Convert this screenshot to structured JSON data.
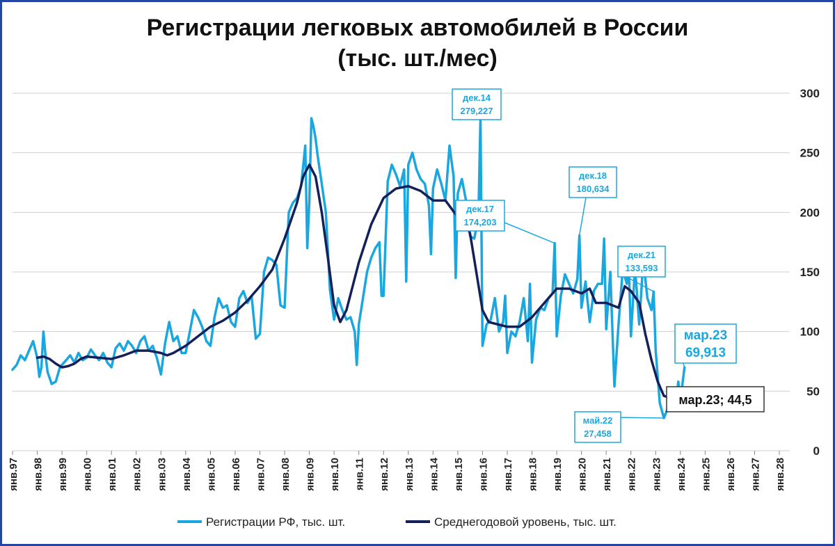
{
  "chart_data": {
    "type": "line",
    "title_line1": "Регистрации легковых автомобилей в России",
    "title_line2": "(тыс. шт./мес)",
    "ylim": [
      0,
      300
    ],
    "yticks": [
      0,
      50,
      100,
      150,
      200,
      250,
      300
    ],
    "y_axis_position": "right",
    "grid": true,
    "legend_position": "bottom",
    "x_start_year": 1997,
    "xticks": [
      "янв.97",
      "янв.98",
      "янв.99",
      "янв.00",
      "янв.01",
      "янв.02",
      "янв.03",
      "янв.04",
      "янв.05",
      "янв.06",
      "янв.07",
      "янв.08",
      "янв.09",
      "янв.10",
      "янв.11",
      "янв.12",
      "янв.13",
      "янв.14",
      "янв.15",
      "янв.16",
      "янв.17",
      "янв.18",
      "янв.19",
      "янв.20",
      "янв.21",
      "янв.22",
      "янв.23",
      "янв.24",
      "янв.25",
      "янв.26",
      "янв.27",
      "янв.28"
    ],
    "series": [
      {
        "name": "Регистрации РФ, тыс. шт.",
        "color": "#1aa7e0",
        "points": [
          [
            "янв.97",
            68
          ],
          [
            "мар.97",
            72
          ],
          [
            "май.97",
            80
          ],
          [
            "июл.97",
            76
          ],
          [
            "сен.97",
            84
          ],
          [
            "ноя.97",
            92
          ],
          [
            "янв.98",
            78
          ],
          [
            "фев.98",
            62
          ],
          [
            "мар.98",
            70
          ],
          [
            "апр.98",
            100
          ],
          [
            "май.98",
            80
          ],
          [
            "июн.98",
            66
          ],
          [
            "авг.98",
            56
          ],
          [
            "окт.98",
            58
          ],
          [
            "дек.98",
            70
          ],
          [
            "янв.99",
            72
          ],
          [
            "мар.99",
            76
          ],
          [
            "май.99",
            80
          ],
          [
            "июл.99",
            74
          ],
          [
            "сен.99",
            82
          ],
          [
            "ноя.99",
            76
          ],
          [
            "янв.00",
            78
          ],
          [
            "мар.00",
            85
          ],
          [
            "май.00",
            80
          ],
          [
            "июл.00",
            76
          ],
          [
            "сен.00",
            82
          ],
          [
            "ноя.00",
            74
          ],
          [
            "янв.01",
            70
          ],
          [
            "мар.01",
            86
          ],
          [
            "май.01",
            90
          ],
          [
            "июл.01",
            84
          ],
          [
            "сен.01",
            92
          ],
          [
            "ноя.01",
            88
          ],
          [
            "янв.02",
            82
          ],
          [
            "мар.02",
            92
          ],
          [
            "май.02",
            96
          ],
          [
            "июл.02",
            84
          ],
          [
            "сен.02",
            88
          ],
          [
            "ноя.02",
            78
          ],
          [
            "янв.03",
            64
          ],
          [
            "мар.03",
            90
          ],
          [
            "май.03",
            108
          ],
          [
            "июл.03",
            92
          ],
          [
            "сен.03",
            96
          ],
          [
            "ноя.03",
            82
          ],
          [
            "янв.04",
            82
          ],
          [
            "мар.04",
            100
          ],
          [
            "май.04",
            118
          ],
          [
            "июл.04",
            112
          ],
          [
            "сен.04",
            104
          ],
          [
            "ноя.04",
            92
          ],
          [
            "янв.05",
            88
          ],
          [
            "мар.05",
            112
          ],
          [
            "май.05",
            128
          ],
          [
            "июл.05",
            120
          ],
          [
            "сен.05",
            122
          ],
          [
            "ноя.05",
            108
          ],
          [
            "янв.06",
            104
          ],
          [
            "мар.06",
            128
          ],
          [
            "май.06",
            134
          ],
          [
            "июл.06",
            124
          ],
          [
            "сен.06",
            130
          ],
          [
            "ноя.06",
            94
          ],
          [
            "янв.07",
            98
          ],
          [
            "мар.07",
            150
          ],
          [
            "май.07",
            162
          ],
          [
            "июл.07",
            160
          ],
          [
            "сен.07",
            156
          ],
          [
            "ноя.07",
            122
          ],
          [
            "янв.08",
            120
          ],
          [
            "мар.08",
            200
          ],
          [
            "май.08",
            208
          ],
          [
            "июл.08",
            212
          ],
          [
            "сен.08",
            222
          ],
          [
            "ноя.08",
            256
          ],
          [
            "дек.08",
            170
          ],
          [
            "янв.09",
            210
          ],
          [
            "фев.09",
            279
          ],
          [
            "мар.09",
            272
          ],
          [
            "апр.09",
            262
          ],
          [
            "май.09",
            248
          ],
          [
            "июл.09",
            224
          ],
          [
            "сен.09",
            200
          ],
          [
            "ноя.09",
            135
          ],
          [
            "янв.10",
            110
          ],
          [
            "мар.10",
            128
          ],
          [
            "май.10",
            118
          ],
          [
            "июл.10",
            110
          ],
          [
            "сен.10",
            112
          ],
          [
            "ноя.10",
            100
          ],
          [
            "дек.10",
            72
          ],
          [
            "янв.11",
            106
          ],
          [
            "мар.11",
            128
          ],
          [
            "май.11",
            150
          ],
          [
            "июл.11",
            162
          ],
          [
            "сен.11",
            170
          ],
          [
            "ноя.11",
            175
          ],
          [
            "дек.11",
            130
          ],
          [
            "янв.12",
            130
          ],
          [
            "мар.12",
            226
          ],
          [
            "май.12",
            240
          ],
          [
            "июл.12",
            232
          ],
          [
            "сен.12",
            222
          ],
          [
            "ноя.12",
            236
          ],
          [
            "дек.12",
            142
          ],
          [
            "янв.13",
            240
          ],
          [
            "мар.13",
            250
          ],
          [
            "май.13",
            236
          ],
          [
            "июл.13",
            228
          ],
          [
            "сен.13",
            224
          ],
          [
            "ноя.13",
            206
          ],
          [
            "дек.13",
            165
          ],
          [
            "янв.14",
            220
          ],
          [
            "мар.14",
            236
          ],
          [
            "май.14",
            224
          ],
          [
            "июл.14",
            210
          ],
          [
            "сен.14",
            256
          ],
          [
            "ноя.14",
            230
          ],
          [
            "дек.14",
            145
          ],
          [
            "янв.15",
            216
          ],
          [
            "мар.15",
            228
          ],
          [
            "май.15",
            210
          ],
          [
            "июл.15",
            180
          ],
          [
            "сен.15",
            178
          ],
          [
            "ноя.15",
            196
          ],
          [
            "дек.15",
            279.227
          ],
          [
            "янв.16",
            88
          ],
          [
            "мар.16",
            106
          ],
          [
            "май.16",
            110
          ],
          [
            "июл.16",
            128
          ],
          [
            "сен.16",
            100
          ],
          [
            "ноя.16",
            108
          ],
          [
            "дек.16",
            130
          ],
          [
            "янв.17",
            82
          ],
          [
            "мар.17",
            100
          ],
          [
            "май.17",
            96
          ],
          [
            "июл.17",
            108
          ],
          [
            "сен.17",
            128
          ],
          [
            "ноя.17",
            92
          ],
          [
            "дек.17",
            140
          ],
          [
            "янв.18",
            74
          ],
          [
            "мар.18",
            110
          ],
          [
            "май.18",
            120
          ],
          [
            "июл.18",
            118
          ],
          [
            "сен.18",
            128
          ],
          [
            "ноя.18",
            132
          ],
          [
            "дек.18",
            174.203
          ],
          [
            "янв.19",
            96
          ],
          [
            "мар.19",
            130
          ],
          [
            "май.19",
            148
          ],
          [
            "июл.19",
            140
          ],
          [
            "сен.19",
            132
          ],
          [
            "ноя.19",
            144
          ],
          [
            "дек.19",
            180.634
          ],
          [
            "янв.20",
            120
          ],
          [
            "мар.20",
            142
          ],
          [
            "май.20",
            108
          ],
          [
            "июл.20",
            134
          ],
          [
            "сен.20",
            140
          ],
          [
            "ноя.20",
            140
          ],
          [
            "дек.20",
            178
          ],
          [
            "янв.21",
            102
          ],
          [
            "мар.21",
            150
          ],
          [
            "май.21",
            54
          ],
          [
            "июл.21",
            106
          ],
          [
            "сен.21",
            152
          ],
          [
            "ноя.21",
            140
          ],
          [
            "дек.21",
            154
          ],
          [
            "янв.22",
            96
          ],
          [
            "мар.22",
            154
          ],
          [
            "май.22",
            106
          ],
          [
            "июл.22",
            160
          ],
          [
            "сен.22",
            128
          ],
          [
            "ноя.22",
            118
          ],
          [
            "дек.22",
            133.593
          ],
          [
            "янв.23",
            84
          ],
          [
            "мар.23",
            40
          ],
          [
            "май.23",
            27.458
          ],
          [
            "июл.23",
            36
          ],
          [
            "сен.23",
            44
          ],
          [
            "ноя.23",
            44
          ],
          [
            "дек.23",
            58
          ],
          [
            "янв.24",
            42
          ],
          [
            "мар.24",
            69.913
          ]
        ]
      },
      {
        "name": "Среднегодовой уровень, тыс. шт.",
        "color": "#14205a",
        "points": [
          [
            "янв.98",
            78
          ],
          [
            "апр.98",
            79
          ],
          [
            "июл.98",
            77
          ],
          [
            "окт.98",
            73
          ],
          [
            "янв.99",
            70
          ],
          [
            "апр.99",
            71
          ],
          [
            "июл.99",
            73
          ],
          [
            "окт.99",
            77
          ],
          [
            "янв.00",
            79
          ],
          [
            "июл.00",
            78
          ],
          [
            "янв.01",
            77
          ],
          [
            "июл.01",
            80
          ],
          [
            "янв.02",
            84
          ],
          [
            "июл.02",
            84
          ],
          [
            "янв.03",
            82
          ],
          [
            "апр.03",
            80
          ],
          [
            "июл.03",
            82
          ],
          [
            "янв.04",
            88
          ],
          [
            "июл.04",
            96
          ],
          [
            "янв.05",
            104
          ],
          [
            "июл.05",
            109
          ],
          [
            "янв.06",
            116
          ],
          [
            "июл.06",
            126
          ],
          [
            "янв.07",
            138
          ],
          [
            "июл.07",
            152
          ],
          [
            "янв.08",
            178
          ],
          [
            "июл.08",
            208
          ],
          [
            "окт.08",
            230
          ],
          [
            "янв.09",
            240
          ],
          [
            "апр.09",
            230
          ],
          [
            "июл.09",
            200
          ],
          [
            "окт.09",
            162
          ],
          [
            "янв.10",
            122
          ],
          [
            "апр.10",
            108
          ],
          [
            "июл.10",
            118
          ],
          [
            "янв.11",
            158
          ],
          [
            "июл.11",
            190
          ],
          [
            "янв.12",
            212
          ],
          [
            "июл.12",
            220
          ],
          [
            "янв.13",
            222
          ],
          [
            "июл.13",
            218
          ],
          [
            "янв.14",
            210
          ],
          [
            "июл.14",
            210
          ],
          [
            "янв.15",
            196
          ],
          [
            "май.15",
            192
          ],
          [
            "июл.15",
            182
          ],
          [
            "окт.15",
            150
          ],
          [
            "янв.16",
            118
          ],
          [
            "апр.16",
            108
          ],
          [
            "янв.17",
            104
          ],
          [
            "июл.17",
            104
          ],
          [
            "янв.18",
            112
          ],
          [
            "июл.18",
            124
          ],
          [
            "янв.19",
            136
          ],
          [
            "июл.19",
            136
          ],
          [
            "янв.20",
            132
          ],
          [
            "май.20",
            136
          ],
          [
            "авг.20",
            124
          ],
          [
            "янв.21",
            124
          ],
          [
            "июл.21",
            120
          ],
          [
            "окт.21",
            138
          ],
          [
            "янв.22",
            134
          ],
          [
            "май.22",
            124
          ],
          [
            "авг.22",
            98
          ],
          [
            "ноя.22",
            76
          ],
          [
            "фев.23",
            58
          ],
          [
            "май.23",
            46
          ],
          [
            "авг.23",
            44.5
          ]
        ]
      }
    ],
    "annotations": [
      {
        "label": "дек.14",
        "value": "279,227",
        "x": "дек.15",
        "y": 279.227
      },
      {
        "label": "дек.17",
        "value": "174,203",
        "x": "дек.18",
        "y": 174.203
      },
      {
        "label": "дек.18",
        "value": "180,634",
        "x": "дек.19",
        "y": 180.634
      },
      {
        "label": "дек.21",
        "value": "133,593",
        "x": "дек.22",
        "y": 133.593
      },
      {
        "label": "май.22",
        "value": "27,458",
        "x": "май.23",
        "y": 27.458
      },
      {
        "label": "мар.23",
        "value": "69,913",
        "x": "мар.24",
        "y": 69.913
      },
      {
        "text": "мар.23;  44,5",
        "x": "авг.23",
        "y": 44.5
      }
    ]
  }
}
